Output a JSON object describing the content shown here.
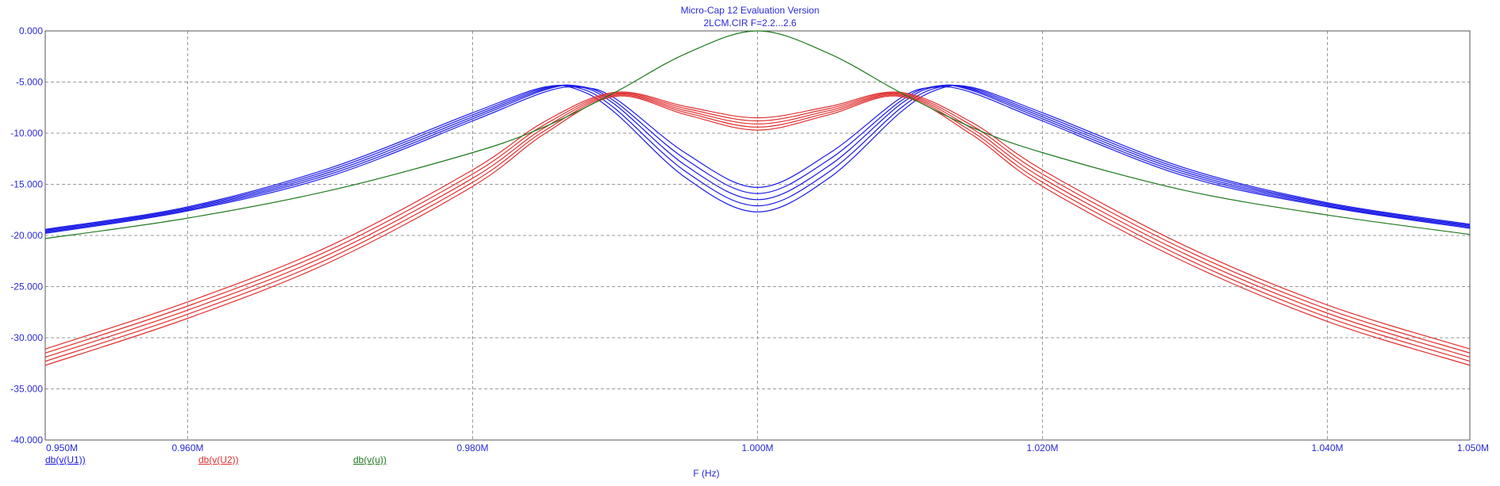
{
  "header": {
    "title": "Micro-Cap 12 Evaluation Version",
    "subtitle": "2LCM.CIR F=2.2...2.6"
  },
  "colors": {
    "blue": "#1a1ae6",
    "red": "#e03030",
    "green": "#1e7a1e",
    "axis_text": "#2a2ad6",
    "grid": "#9a9a9a"
  },
  "chart_data": {
    "type": "line",
    "title": "Micro-Cap 12 Evaluation Version",
    "subtitle": "2LCM.CIR F=2.2...2.6",
    "xlabel": "F (Hz)",
    "ylabel": "",
    "xlim": [
      0.95,
      1.05
    ],
    "ylim": [
      -40,
      0
    ],
    "x_unit": "MHz",
    "x_ticks": [
      0.95,
      0.96,
      0.98,
      1.0,
      1.02,
      1.04,
      1.05
    ],
    "x_tick_labels": [
      "0.950M",
      "0.960M",
      "0.980M",
      "1.000M",
      "1.020M",
      "1.040M",
      "1.050M"
    ],
    "y_ticks": [
      0,
      -5,
      -10,
      -15,
      -20,
      -25,
      -30,
      -35,
      -40
    ],
    "y_tick_labels": [
      "0.000",
      "-5.000",
      "-10.000",
      "-15.000",
      "-20.000",
      "-25.000",
      "-30.000",
      "-35.000",
      "-40.000"
    ],
    "grid": true,
    "legend_position": "bottom-left",
    "series": [
      {
        "name": "db(v(U1))",
        "color": "#1a1ae6",
        "curves": [
          {
            "x": [
              0.95,
              0.96,
              0.97,
              0.98,
              0.985,
              0.9875,
              0.99,
              0.995,
              1.0,
              1.005,
              1.01,
              1.0125,
              1.015,
              1.02,
              1.03,
              1.04,
              1.05
            ],
            "y": [
              -19.8,
              -17.6,
              -14.2,
              -8.8,
              -6.0,
              -5.5,
              -6.6,
              -12.0,
              -15.3,
              -12.0,
              -6.6,
              -5.5,
              -6.0,
              -8.8,
              -14.2,
              -17.2,
              -19.3
            ]
          },
          {
            "x": [
              0.95,
              0.96,
              0.97,
              0.98,
              0.985,
              0.9875,
              0.99,
              0.995,
              1.0,
              1.005,
              1.01,
              1.0125,
              1.015,
              1.02,
              1.03,
              1.04,
              1.05
            ],
            "y": [
              -19.7,
              -17.5,
              -14.0,
              -8.6,
              -5.8,
              -5.4,
              -6.9,
              -12.6,
              -15.9,
              -12.6,
              -6.9,
              -5.4,
              -5.8,
              -8.6,
              -14.0,
              -17.1,
              -19.2
            ]
          },
          {
            "x": [
              0.95,
              0.96,
              0.97,
              0.98,
              0.985,
              0.9875,
              0.99,
              0.995,
              1.0,
              1.005,
              1.01,
              1.0125,
              1.015,
              1.02,
              1.03,
              1.04,
              1.05
            ],
            "y": [
              -19.6,
              -17.4,
              -13.8,
              -8.4,
              -5.7,
              -5.45,
              -7.2,
              -13.2,
              -16.5,
              -13.2,
              -7.2,
              -5.45,
              -5.7,
              -8.4,
              -13.8,
              -17.0,
              -19.1
            ]
          },
          {
            "x": [
              0.95,
              0.96,
              0.97,
              0.98,
              0.985,
              0.9875,
              0.99,
              0.995,
              1.0,
              1.005,
              1.01,
              1.0125,
              1.015,
              1.02,
              1.03,
              1.04,
              1.05
            ],
            "y": [
              -19.5,
              -17.3,
              -13.6,
              -8.2,
              -5.6,
              -5.6,
              -7.6,
              -13.8,
              -17.1,
              -13.8,
              -7.6,
              -5.6,
              -5.6,
              -8.2,
              -13.6,
              -16.9,
              -19.0
            ]
          },
          {
            "x": [
              0.95,
              0.96,
              0.97,
              0.98,
              0.985,
              0.9875,
              0.99,
              0.995,
              1.0,
              1.005,
              1.01,
              1.0125,
              1.015,
              1.02,
              1.03,
              1.04,
              1.05
            ],
            "y": [
              -19.4,
              -17.2,
              -13.4,
              -8.0,
              -5.5,
              -5.8,
              -8.0,
              -14.4,
              -17.7,
              -14.4,
              -8.0,
              -5.8,
              -5.5,
              -8.0,
              -13.4,
              -16.8,
              -18.9
            ]
          }
        ]
      },
      {
        "name": "db(v(U2))",
        "color": "#e03030",
        "curves": [
          {
            "x": [
              0.95,
              0.96,
              0.97,
              0.98,
              0.985,
              0.99,
              0.995,
              1.0,
              1.005,
              1.01,
              1.015,
              1.02,
              1.03,
              1.04,
              1.05
            ],
            "y": [
              -31.1,
              -26.5,
              -21.0,
              -13.6,
              -8.9,
              -6.0,
              -7.4,
              -8.5,
              -7.4,
              -6.0,
              -8.9,
              -13.6,
              -21.0,
              -26.8,
              -31.1
            ]
          },
          {
            "x": [
              0.95,
              0.96,
              0.97,
              0.98,
              0.985,
              0.99,
              0.995,
              1.0,
              1.005,
              1.01,
              1.015,
              1.02,
              1.03,
              1.04,
              1.05
            ],
            "y": [
              -31.5,
              -26.9,
              -21.4,
              -14.0,
              -9.2,
              -6.1,
              -7.6,
              -8.8,
              -7.6,
              -6.1,
              -9.2,
              -14.0,
              -21.4,
              -27.2,
              -31.5
            ]
          },
          {
            "x": [
              0.95,
              0.96,
              0.97,
              0.98,
              0.985,
              0.99,
              0.995,
              1.0,
              1.005,
              1.01,
              1.015,
              1.02,
              1.03,
              1.04,
              1.05
            ],
            "y": [
              -31.9,
              -27.3,
              -21.8,
              -14.4,
              -9.5,
              -6.2,
              -7.8,
              -9.1,
              -7.8,
              -6.2,
              -9.5,
              -14.4,
              -21.8,
              -27.6,
              -31.9
            ]
          },
          {
            "x": [
              0.95,
              0.96,
              0.97,
              0.98,
              0.985,
              0.99,
              0.995,
              1.0,
              1.005,
              1.01,
              1.015,
              1.02,
              1.03,
              1.04,
              1.05
            ],
            "y": [
              -32.3,
              -27.7,
              -22.2,
              -14.8,
              -9.8,
              -6.3,
              -8.0,
              -9.4,
              -8.0,
              -6.3,
              -9.8,
              -14.8,
              -22.2,
              -28.0,
              -32.3
            ]
          },
          {
            "x": [
              0.95,
              0.96,
              0.97,
              0.98,
              0.985,
              0.99,
              0.995,
              1.0,
              1.005,
              1.01,
              1.015,
              1.02,
              1.03,
              1.04,
              1.05
            ],
            "y": [
              -32.7,
              -28.1,
              -22.6,
              -15.2,
              -10.1,
              -6.4,
              -8.2,
              -9.7,
              -8.2,
              -6.4,
              -10.1,
              -15.2,
              -22.6,
              -28.4,
              -32.7
            ]
          }
        ]
      },
      {
        "name": "db(v(u))",
        "color": "#1e7a1e",
        "curves": [
          {
            "x": [
              0.95,
              0.96,
              0.97,
              0.98,
              0.985,
              0.99,
              0.995,
              1.0,
              1.005,
              1.01,
              1.015,
              1.02,
              1.03,
              1.04,
              1.05
            ],
            "y": [
              -20.3,
              -18.3,
              -15.6,
              -11.9,
              -9.4,
              -6.0,
              -2.2,
              0.0,
              -2.2,
              -6.0,
              -9.4,
              -11.9,
              -15.6,
              -18.0,
              -19.9
            ]
          }
        ]
      }
    ]
  }
}
